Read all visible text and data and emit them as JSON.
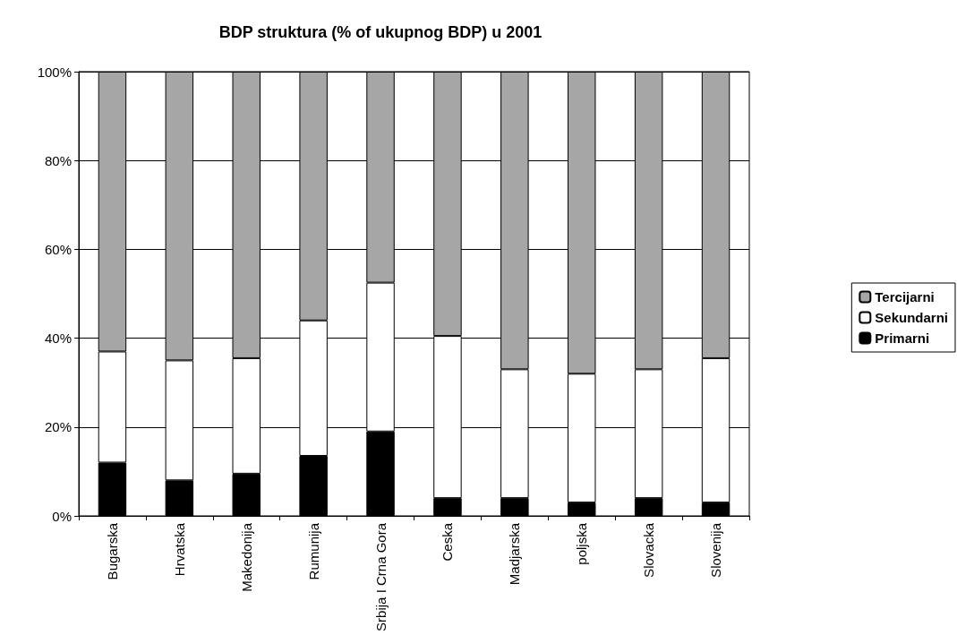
{
  "chart_data": {
    "type": "bar",
    "title": "BDP struktura (% of ukupnog BDP) u 2001",
    "stacked": true,
    "categories": [
      "Bugarska",
      "Hrvatska",
      "Makedonija",
      "Rumunija",
      "Srbija I Crna Gora",
      "Ceska",
      "Madjarska",
      "poljska",
      "Slovacka",
      "Slovenija"
    ],
    "series": [
      {
        "name": "Primarni",
        "color": "#000000",
        "values": [
          12,
          8,
          9.5,
          13.5,
          19,
          4,
          4,
          3,
          4,
          3
        ]
      },
      {
        "name": "Sekundarni",
        "color": "#ffffff",
        "values": [
          25,
          27,
          26,
          30.5,
          33.5,
          36.5,
          29,
          29,
          29,
          32.5
        ]
      },
      {
        "name": "Tercijarni",
        "color": "#a6a6a6",
        "values": [
          63,
          65,
          64.5,
          56,
          47.5,
          59.5,
          67,
          68,
          67,
          64.5
        ]
      }
    ],
    "ylim": [
      0,
      100
    ],
    "yticks": [
      {
        "value": 0,
        "label": "0%"
      },
      {
        "value": 20,
        "label": "20%"
      },
      {
        "value": 40,
        "label": "40%"
      },
      {
        "value": 60,
        "label": "60%"
      },
      {
        "value": 80,
        "label": "80%"
      },
      {
        "value": 100,
        "label": "100%"
      }
    ],
    "grid": "y",
    "legend": "right"
  }
}
